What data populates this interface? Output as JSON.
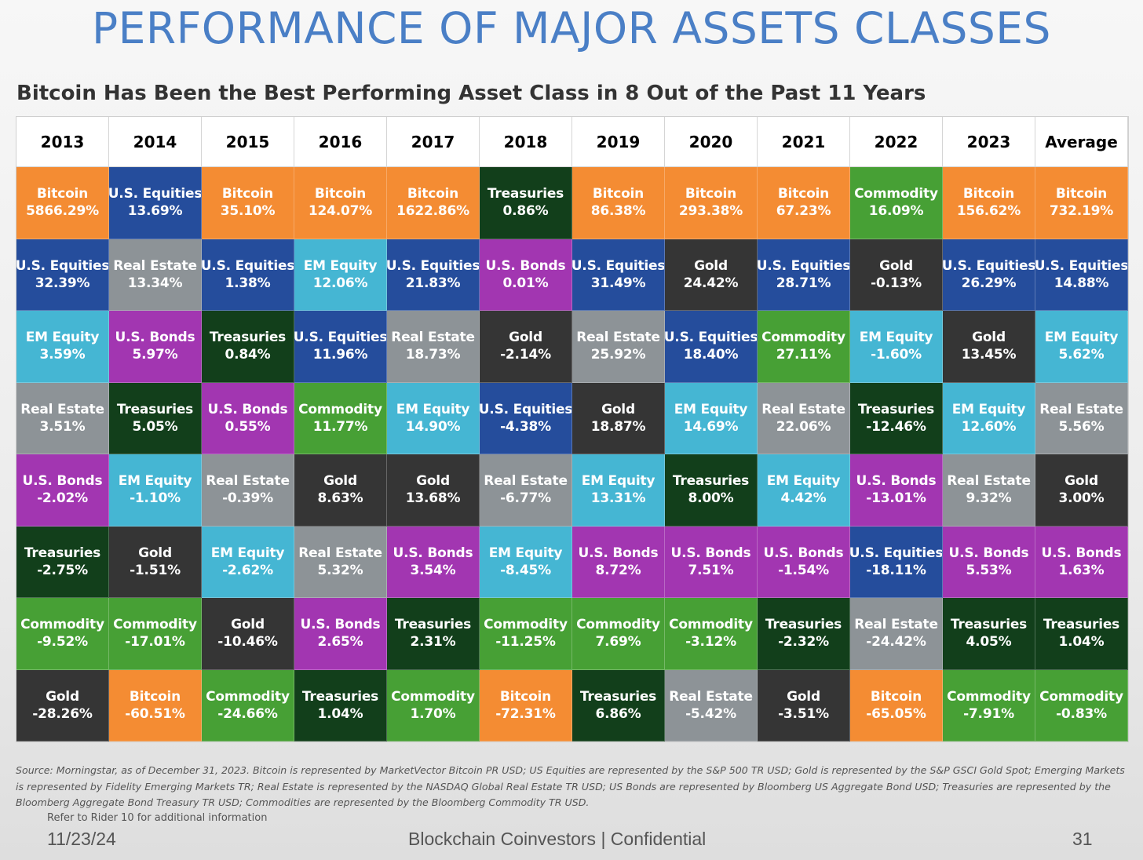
{
  "title": "PERFORMANCE OF MAJOR ASSETS CLASSES",
  "chart_data": {
    "type": "table",
    "title": "Bitcoin Has Been the Best Performing Asset Class in 8 Out of the Past 11 Years",
    "columns": [
      "2013",
      "2014",
      "2015",
      "2016",
      "2017",
      "2018",
      "2019",
      "2020",
      "2021",
      "2022",
      "2023",
      "Average"
    ],
    "asset_colors": {
      "Bitcoin": "#f48c33",
      "U.S. Equities": "#254d9c",
      "EM Equity": "#45b6d3",
      "Real Estate": "#8d9397",
      "U.S. Bonds": "#a236b1",
      "Treasuries": "#123f1b",
      "Commodity": "#47a035",
      "Gold": "#353535"
    },
    "rankings": [
      [
        {
          "asset": "Bitcoin",
          "value": "5866.29%"
        },
        {
          "asset": "U.S. Equities",
          "value": "32.39%"
        },
        {
          "asset": "EM Equity",
          "value": "3.59%"
        },
        {
          "asset": "Real Estate",
          "value": "3.51%"
        },
        {
          "asset": "U.S. Bonds",
          "value": "-2.02%"
        },
        {
          "asset": "Treasuries",
          "value": "-2.75%"
        },
        {
          "asset": "Commodity",
          "value": "-9.52%"
        },
        {
          "asset": "Gold",
          "value": "-28.26%"
        }
      ],
      [
        {
          "asset": "U.S. Equities",
          "value": "13.69%"
        },
        {
          "asset": "Real Estate",
          "value": "13.34%"
        },
        {
          "asset": "U.S. Bonds",
          "value": "5.97%"
        },
        {
          "asset": "Treasuries",
          "value": "5.05%"
        },
        {
          "asset": "EM Equity",
          "value": "-1.10%"
        },
        {
          "asset": "Gold",
          "value": "-1.51%"
        },
        {
          "asset": "Commodity",
          "value": "-17.01%"
        },
        {
          "asset": "Bitcoin",
          "value": "-60.51%"
        }
      ],
      [
        {
          "asset": "Bitcoin",
          "value": "35.10%"
        },
        {
          "asset": "U.S. Equities",
          "value": "1.38%"
        },
        {
          "asset": "Treasuries",
          "value": "0.84%"
        },
        {
          "asset": "U.S. Bonds",
          "value": "0.55%"
        },
        {
          "asset": "Real Estate",
          "value": "-0.39%"
        },
        {
          "asset": "EM Equity",
          "value": "-2.62%"
        },
        {
          "asset": "Gold",
          "value": "-10.46%"
        },
        {
          "asset": "Commodity",
          "value": "-24.66%"
        }
      ],
      [
        {
          "asset": "Bitcoin",
          "value": "124.07%"
        },
        {
          "asset": "EM Equity",
          "value": "12.06%"
        },
        {
          "asset": "U.S. Equities",
          "value": "11.96%"
        },
        {
          "asset": "Commodity",
          "value": "11.77%"
        },
        {
          "asset": "Gold",
          "value": "8.63%"
        },
        {
          "asset": "Real Estate",
          "value": "5.32%"
        },
        {
          "asset": "U.S. Bonds",
          "value": "2.65%"
        },
        {
          "asset": "Treasuries",
          "value": "1.04%"
        }
      ],
      [
        {
          "asset": "Bitcoin",
          "value": "1622.86%"
        },
        {
          "asset": "U.S. Equities",
          "value": "21.83%"
        },
        {
          "asset": "Real Estate",
          "value": "18.73%"
        },
        {
          "asset": "EM Equity",
          "value": "14.90%"
        },
        {
          "asset": "Gold",
          "value": "13.68%"
        },
        {
          "asset": "U.S. Bonds",
          "value": "3.54%"
        },
        {
          "asset": "Treasuries",
          "value": "2.31%"
        },
        {
          "asset": "Commodity",
          "value": "1.70%"
        }
      ],
      [
        {
          "asset": "Treasuries",
          "value": "0.86%"
        },
        {
          "asset": "U.S. Bonds",
          "value": "0.01%"
        },
        {
          "asset": "Gold",
          "value": "-2.14%"
        },
        {
          "asset": "U.S. Equities",
          "value": "-4.38%"
        },
        {
          "asset": "Real Estate",
          "value": "-6.77%"
        },
        {
          "asset": "EM Equity",
          "value": "-8.45%"
        },
        {
          "asset": "Commodity",
          "value": "-11.25%"
        },
        {
          "asset": "Bitcoin",
          "value": "-72.31%"
        }
      ],
      [
        {
          "asset": "Bitcoin",
          "value": "86.38%"
        },
        {
          "asset": "U.S. Equities",
          "value": "31.49%"
        },
        {
          "asset": "Real Estate",
          "value": "25.92%"
        },
        {
          "asset": "Gold",
          "value": "18.87%"
        },
        {
          "asset": "EM Equity",
          "value": "13.31%"
        },
        {
          "asset": "U.S. Bonds",
          "value": "8.72%"
        },
        {
          "asset": "Commodity",
          "value": "7.69%"
        },
        {
          "asset": "Treasuries",
          "value": "6.86%"
        }
      ],
      [
        {
          "asset": "Bitcoin",
          "value": "293.38%"
        },
        {
          "asset": "Gold",
          "value": "24.42%"
        },
        {
          "asset": "U.S. Equities",
          "value": "18.40%"
        },
        {
          "asset": "EM Equity",
          "value": "14.69%"
        },
        {
          "asset": "Treasuries",
          "value": "8.00%"
        },
        {
          "asset": "U.S. Bonds",
          "value": "7.51%"
        },
        {
          "asset": "Commodity",
          "value": "-3.12%"
        },
        {
          "asset": "Real Estate",
          "value": "-5.42%"
        }
      ],
      [
        {
          "asset": "Bitcoin",
          "value": "67.23%"
        },
        {
          "asset": "U.S. Equities",
          "value": "28.71%"
        },
        {
          "asset": "Commodity",
          "value": "27.11%"
        },
        {
          "asset": "Real Estate",
          "value": "22.06%"
        },
        {
          "asset": "EM Equity",
          "value": "4.42%"
        },
        {
          "asset": "U.S. Bonds",
          "value": "-1.54%"
        },
        {
          "asset": "Treasuries",
          "value": "-2.32%"
        },
        {
          "asset": "Gold",
          "value": "-3.51%"
        }
      ],
      [
        {
          "asset": "Commodity",
          "value": "16.09%"
        },
        {
          "asset": "Gold",
          "value": "-0.13%"
        },
        {
          "asset": "EM Equity",
          "value": "-1.60%"
        },
        {
          "asset": "Treasuries",
          "value": "-12.46%"
        },
        {
          "asset": "U.S. Bonds",
          "value": "-13.01%"
        },
        {
          "asset": "U.S. Equities",
          "value": "-18.11%"
        },
        {
          "asset": "Real Estate",
          "value": "-24.42%"
        },
        {
          "asset": "Bitcoin",
          "value": "-65.05%"
        }
      ],
      [
        {
          "asset": "Bitcoin",
          "value": "156.62%"
        },
        {
          "asset": "U.S. Equities",
          "value": "26.29%"
        },
        {
          "asset": "Gold",
          "value": "13.45%"
        },
        {
          "asset": "EM Equity",
          "value": "12.60%"
        },
        {
          "asset": "Real Estate",
          "value": "9.32%"
        },
        {
          "asset": "U.S. Bonds",
          "value": "5.53%"
        },
        {
          "asset": "Treasuries",
          "value": "4.05%"
        },
        {
          "asset": "Commodity",
          "value": "-7.91%"
        }
      ],
      [
        {
          "asset": "Bitcoin",
          "value": "732.19%"
        },
        {
          "asset": "U.S. Equities",
          "value": "14.88%"
        },
        {
          "asset": "EM Equity",
          "value": "5.62%"
        },
        {
          "asset": "Real Estate",
          "value": "5.56%"
        },
        {
          "asset": "Gold",
          "value": "3.00%"
        },
        {
          "asset": "U.S. Bonds",
          "value": "1.63%"
        },
        {
          "asset": "Treasuries",
          "value": "1.04%"
        },
        {
          "asset": "Commodity",
          "value": "-0.83%"
        }
      ]
    ]
  },
  "footnote": "Source: Morningstar, as of December 31, 2023. Bitcoin is represented by MarketVector Bitcoin PR USD; US Equities are represented by the S&P 500 TR USD; Gold is represented by the S&P GSCI Gold Spot; Emerging Markets is represented by Fidelity Emerging Markets TR; Real Estate is represented by the NASDAQ Global Real Estate TR USD; US Bonds are represented by Bloomberg US Aggregate Bond USD; Treasuries are represented by the Bloomberg Aggregate Bond Treasury TR USD; Commodities are represented by the Bloomberg Commodity TR USD.",
  "rider_note": "Refer to Rider 10 for additional information",
  "footer": {
    "date": "11/23/24",
    "center": "Blockchain Coinvestors | Confidential",
    "page_number": "31"
  }
}
